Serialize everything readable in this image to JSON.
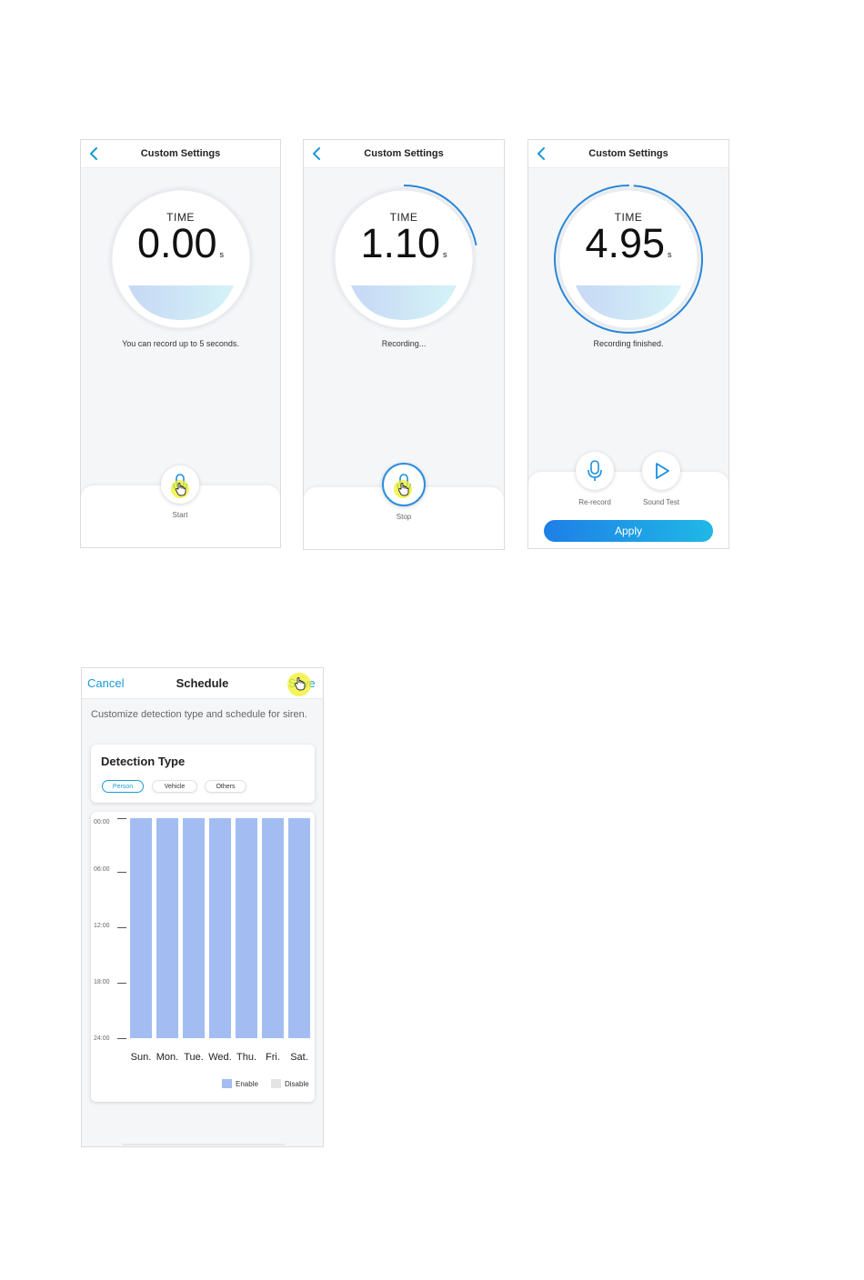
{
  "screens": [
    {
      "title": "Custom Settings",
      "time_label": "TIME",
      "time_value": "0.00",
      "time_unit": "s",
      "status": "You can record up to 5 seconds.",
      "progress": 0,
      "button_label": "Start"
    },
    {
      "title": "Custom Settings",
      "time_label": "TIME",
      "time_value": "1.10",
      "time_unit": "s",
      "status": "Recording...",
      "progress": 0.22,
      "button_label": "Stop"
    },
    {
      "title": "Custom Settings",
      "time_label": "TIME",
      "time_value": "4.95",
      "time_unit": "s",
      "status": "Recording finished.",
      "progress": 0.99,
      "rerecord_label": "Re-record",
      "sound_test_label": "Sound Test",
      "apply_label": "Apply"
    }
  ],
  "schedule": {
    "cancel_label": "Cancel",
    "title": "Schedule",
    "save_label": "Save",
    "description": "Customize detection type and schedule for siren.",
    "detection_title": "Detection Type",
    "chips": [
      {
        "label": "Person",
        "selected": true
      },
      {
        "label": "Vehicle",
        "selected": false
      },
      {
        "label": "Others",
        "selected": false
      }
    ],
    "time_labels": [
      "00:00",
      "06:00",
      "12:00",
      "18:00",
      "24:00"
    ],
    "days": [
      "Sun.",
      "Mon.",
      "Tue.",
      "Wed.",
      "Thu.",
      "Fri.",
      "Sat."
    ],
    "legend": {
      "enable": "Enable",
      "disable": "Disable"
    },
    "colors": {
      "enable": "#a3bdf3",
      "disable": "#e4e4e4",
      "accent": "#1a9ad6"
    }
  },
  "icons": {
    "back": "chevron-left-icon",
    "mic": "microphone-icon",
    "play": "play-icon",
    "hand": "hand-pointer-icon"
  }
}
